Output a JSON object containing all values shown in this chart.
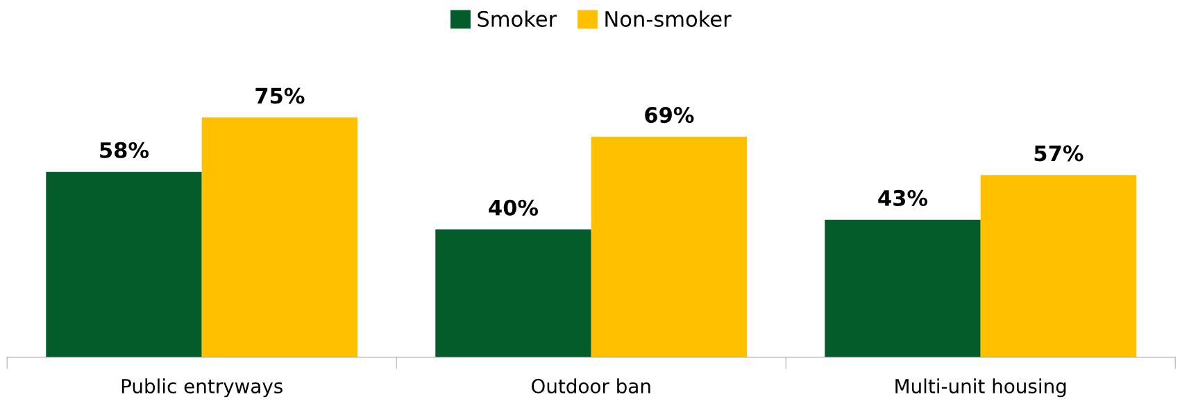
{
  "chart_data": {
    "type": "bar",
    "categories": [
      "Public entryways",
      "Outdoor ban",
      "Multi-unit housing"
    ],
    "series": [
      {
        "name": "Smoker",
        "color": "#035c2a",
        "values": [
          58,
          40,
          43
        ],
        "value_labels": [
          "58%",
          "40%",
          "43%"
        ]
      },
      {
        "name": "Non-smoker",
        "color": "#ffc000",
        "values": [
          75,
          69,
          57
        ],
        "value_labels": [
          "75%",
          "69%",
          "57%"
        ]
      }
    ],
    "legend": "top",
    "grid": false
  }
}
